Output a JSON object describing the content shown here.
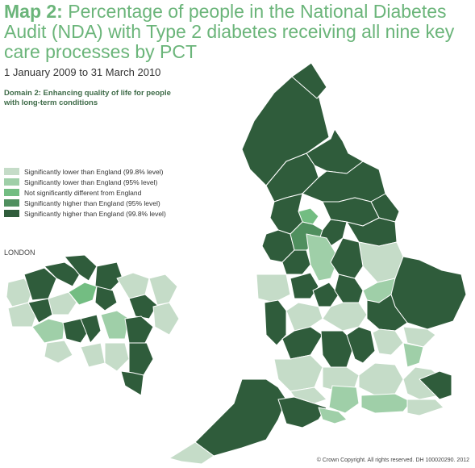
{
  "title": {
    "lead": "Map 2:",
    "rest": " Percentage of people in the National Diabetes Audit (NDA) with Type 2 diabetes receiving all nine key care processes by PCT"
  },
  "date_range": "1 January 2009 to 31 March 2010",
  "domain_line1": "Domain 2: Enhancing quality of life for people",
  "domain_line2": "with long-term conditions",
  "legend": [
    {
      "label": "Significantly lower than England (99.8% level)",
      "color": "#c5dcc8"
    },
    {
      "label": "Significantly lower than England (95% level)",
      "color": "#9fcfa8"
    },
    {
      "label": "Not significantly different from England",
      "color": "#73bd82"
    },
    {
      "label": "Significantly higher than England (95% level)",
      "color": "#4f8f5e"
    },
    {
      "label": "Significantly higher than England (99.8% level)",
      "color": "#2f5c3b"
    }
  ],
  "london_label": "LONDON",
  "credit": "© Crown Copyright. All rights reserved. DH 100020290. 2012",
  "colors": {
    "title": "#6bb57a",
    "boundary": "#ffffff"
  }
}
